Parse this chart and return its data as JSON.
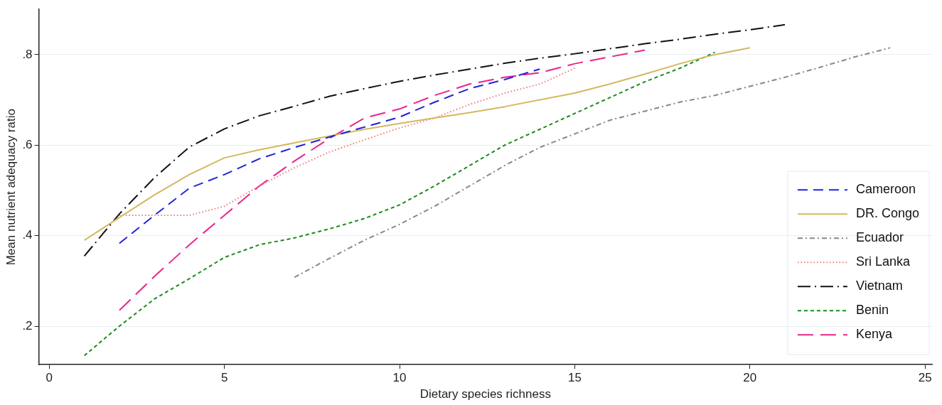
{
  "chart_data": {
    "type": "line",
    "xlabel": "Dietary species richness",
    "ylabel": "Mean nutrient adequacy ratio",
    "xlim": [
      -0.3,
      25.2
    ],
    "xticks": [
      0,
      5,
      10,
      15,
      20,
      25
    ],
    "ylim": [
      0.115,
      0.9
    ],
    "yticks": [
      {
        "value": 0.2,
        "label": ".2"
      },
      {
        "value": 0.4,
        "label": ".4"
      },
      {
        "value": 0.6,
        "label": ".6"
      },
      {
        "value": 0.8,
        "label": ".8"
      }
    ],
    "grid": "y",
    "legend": "bottom right",
    "marker": "none",
    "series": [
      {
        "name": "Cameroon",
        "color": "#2222dd",
        "line_style": "dashed",
        "x": [
          2,
          3,
          4,
          5,
          6,
          7,
          8,
          9,
          10,
          11,
          12,
          13,
          14
        ],
        "values": [
          0.383,
          0.445,
          0.505,
          0.535,
          0.57,
          0.595,
          0.618,
          0.64,
          0.662,
          0.695,
          0.725,
          0.745,
          0.768
        ]
      },
      {
        "name": "DR. Congo",
        "color": "#d4b860",
        "line_style": "solid",
        "x": [
          1,
          2,
          3,
          4,
          5,
          6,
          7,
          8,
          9,
          10,
          11,
          12,
          13,
          14,
          15,
          16,
          17,
          18,
          19,
          20
        ],
        "values": [
          0.39,
          0.44,
          0.49,
          0.535,
          0.572,
          0.59,
          0.605,
          0.62,
          0.635,
          0.648,
          0.66,
          0.672,
          0.685,
          0.7,
          0.715,
          0.735,
          0.757,
          0.78,
          0.8,
          0.815
        ]
      },
      {
        "name": "Ecuador",
        "color": "#888888",
        "line_style": "dashdot",
        "x": [
          7,
          8,
          9,
          10,
          11,
          12,
          13,
          14,
          15,
          16,
          17,
          18,
          19,
          20,
          21,
          22,
          23,
          24
        ],
        "values": [
          0.308,
          0.35,
          0.39,
          0.425,
          0.465,
          0.51,
          0.555,
          0.595,
          0.625,
          0.655,
          0.675,
          0.695,
          0.71,
          0.73,
          0.75,
          0.772,
          0.795,
          0.815
        ]
      },
      {
        "name": "Sri Lanka",
        "color": "#e87a7a",
        "line_style": "dotted",
        "x": [
          2,
          3,
          4,
          5,
          6,
          7,
          8,
          9,
          10,
          11,
          12,
          13,
          14,
          15
        ],
        "values": [
          0.445,
          0.445,
          0.445,
          0.465,
          0.51,
          0.55,
          0.585,
          0.612,
          0.638,
          0.66,
          0.69,
          0.715,
          0.735,
          0.77
        ]
      },
      {
        "name": "Vietnam",
        "color": "#111111",
        "line_style": "longdashdot",
        "x": [
          1,
          2,
          3,
          4,
          5,
          6,
          7,
          8,
          9,
          10,
          11,
          12,
          13,
          14,
          15,
          16,
          17,
          18,
          19,
          20,
          21
        ],
        "values": [
          0.355,
          0.448,
          0.528,
          0.596,
          0.636,
          0.665,
          0.686,
          0.708,
          0.725,
          0.741,
          0.755,
          0.768,
          0.781,
          0.792,
          0.802,
          0.813,
          0.824,
          0.834,
          0.845,
          0.855,
          0.866
        ]
      },
      {
        "name": "Benin",
        "color": "#1a8a1a",
        "line_style": "shortdash",
        "x": [
          1,
          2,
          3,
          4,
          5,
          6,
          7,
          8,
          9,
          10,
          11,
          12,
          13,
          14,
          15,
          16,
          17,
          18,
          19
        ],
        "values": [
          0.135,
          0.2,
          0.26,
          0.305,
          0.352,
          0.38,
          0.395,
          0.415,
          0.438,
          0.468,
          0.51,
          0.555,
          0.6,
          0.635,
          0.67,
          0.705,
          0.74,
          0.77,
          0.805
        ]
      },
      {
        "name": "Kenya",
        "color": "#e8268a",
        "line_style": "longdash",
        "x": [
          2,
          3,
          4,
          5,
          6,
          7,
          8,
          9,
          10,
          11,
          12,
          13,
          14,
          15,
          16,
          17
        ],
        "values": [
          0.235,
          0.31,
          0.38,
          0.445,
          0.51,
          0.565,
          0.615,
          0.66,
          0.68,
          0.71,
          0.735,
          0.75,
          0.76,
          0.78,
          0.795,
          0.81
        ]
      }
    ]
  }
}
